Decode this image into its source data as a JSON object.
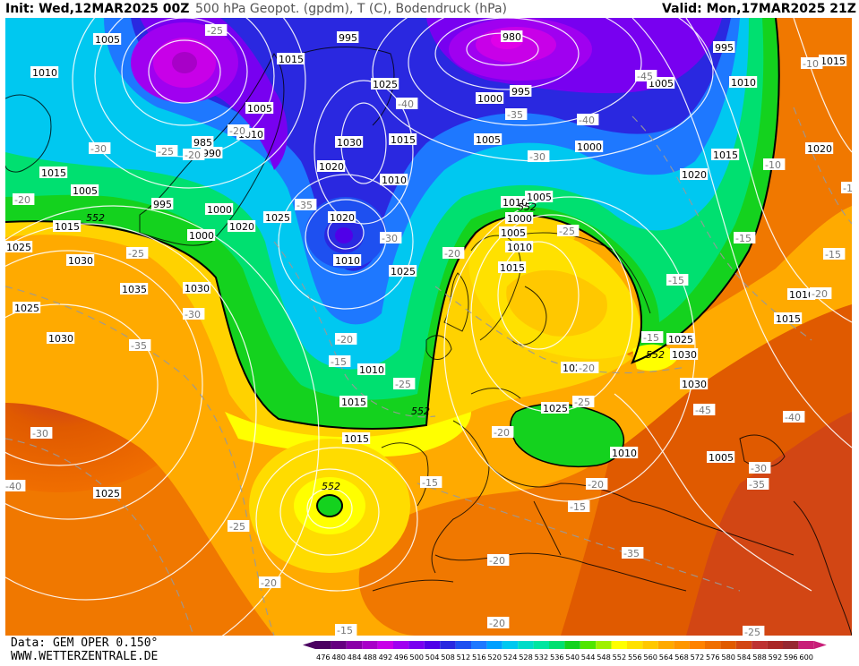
{
  "header": {
    "init": "Init: Wed,12MAR2025 00Z",
    "field": "500 hPa Geopot. (gpdm), T (C), Bodendruck (hPa)",
    "valid": "Valid: Mon,17MAR2025 21Z"
  },
  "footer": {
    "data_source": "Data: GEM OPER 0.150°",
    "website": "WWW.WETTERZENTRALE.DE"
  },
  "legend": {
    "levels": [
      "476",
      "480",
      "484",
      "488",
      "492",
      "496",
      "500",
      "504",
      "508",
      "512",
      "516",
      "520",
      "524",
      "528",
      "532",
      "536",
      "540",
      "544",
      "548",
      "552",
      "556",
      "560",
      "564",
      "568",
      "572",
      "576",
      "580",
      "584",
      "588",
      "592",
      "596",
      "600"
    ],
    "colors": [
      "#4a0060",
      "#660080",
      "#8a00a8",
      "#a800c8",
      "#c800e8",
      "#a000f0",
      "#7800f0",
      "#5000e8",
      "#2a28e0",
      "#1e50f0",
      "#1e78ff",
      "#00a0ff",
      "#00c8f0",
      "#00dcc8",
      "#00e6a0",
      "#00e070",
      "#14d21e",
      "#50e600",
      "#a0f000",
      "#ffff00",
      "#ffe100",
      "#ffc800",
      "#ffaa00",
      "#ff9600",
      "#ff8200",
      "#f06e00",
      "#e05a00",
      "#d24614",
      "#be3232",
      "#aa2828",
      "#962832",
      "#c81e78"
    ]
  },
  "map": {
    "pressure_labels": [
      "1005",
      "1010",
      "1015",
      "1005",
      "995",
      "985",
      "990",
      "1015",
      "1010",
      "1025",
      "1030",
      "1015",
      "1020",
      "1010",
      "1005",
      "1000",
      "995",
      "1000",
      "980",
      "995",
      "1000",
      "1005",
      "1000",
      "995",
      "1005",
      "1010",
      "1015",
      "1020",
      "1025",
      "1030",
      "1035",
      "1030",
      "1025",
      "1030",
      "1025",
      "1020",
      "1025",
      "1020",
      "1015",
      "1010",
      "1025",
      "1010",
      "1015",
      "1015",
      "1010",
      "1005",
      "1000",
      "1005",
      "1010",
      "1015",
      "1020",
      "1025",
      "1030",
      "1030",
      "1025",
      "1010",
      "1005",
      "1010",
      "1015",
      "1020",
      "1015"
    ],
    "temperature_labels": [
      "-25",
      "-20",
      "-30",
      "-25",
      "-20",
      "-20",
      "-35",
      "-30",
      "-40",
      "-45",
      "-40",
      "-35",
      "-30",
      "-25",
      "-20",
      "-25",
      "-30",
      "-35",
      "-30",
      "-25",
      "-20",
      "-15",
      "-15",
      "-15",
      "-20",
      "-25",
      "-20",
      "-15",
      "-15",
      "-20",
      "-15",
      "-10",
      "-10",
      "-15",
      "-15",
      "-20",
      "-25",
      "-20",
      "-15",
      "-20",
      "-25",
      "-30",
      "-35",
      "-40",
      "-45",
      "-35",
      "-40",
      "-20",
      "-15",
      "-15",
      "-20",
      "-25",
      "-20"
    ],
    "geopotential_label": "552"
  }
}
